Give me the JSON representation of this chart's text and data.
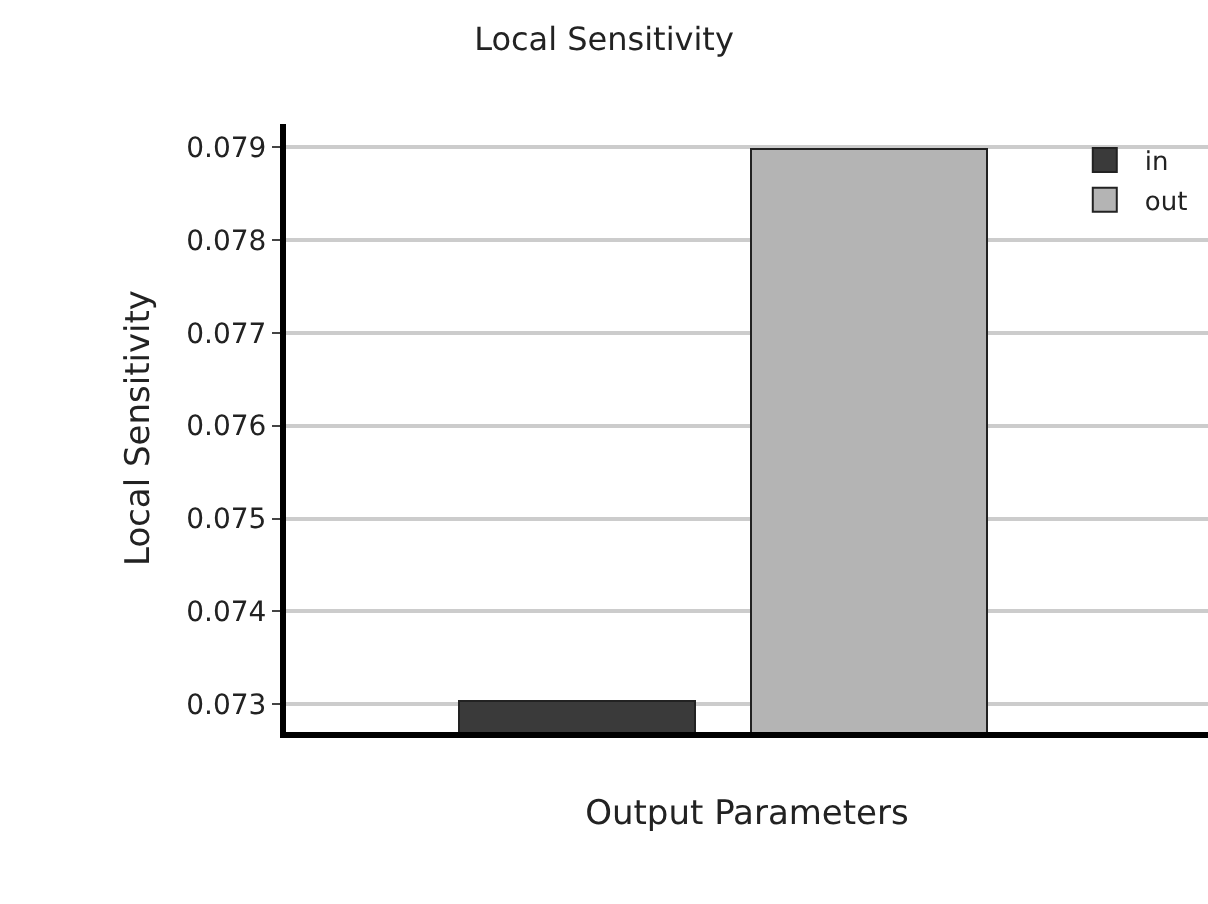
{
  "chart_data": {
    "type": "bar",
    "title": "Local Sensitivity",
    "xlabel": "Output Parameters",
    "ylabel": "Local Sensitivity",
    "categories": [
      null,
      null
    ],
    "series": [
      {
        "name": "in",
        "color": "#3a3a3a",
        "values": [
          0.07303,
          null
        ]
      },
      {
        "name": "out",
        "color": "#b4b4b4",
        "values": [
          null,
          0.07896
        ]
      }
    ],
    "ylim": [
      0.0727,
      0.07925
    ],
    "yticks": [
      0.073,
      0.074,
      0.075,
      0.076,
      0.077,
      0.078,
      0.079
    ],
    "grid": "y",
    "legend": "top right"
  }
}
